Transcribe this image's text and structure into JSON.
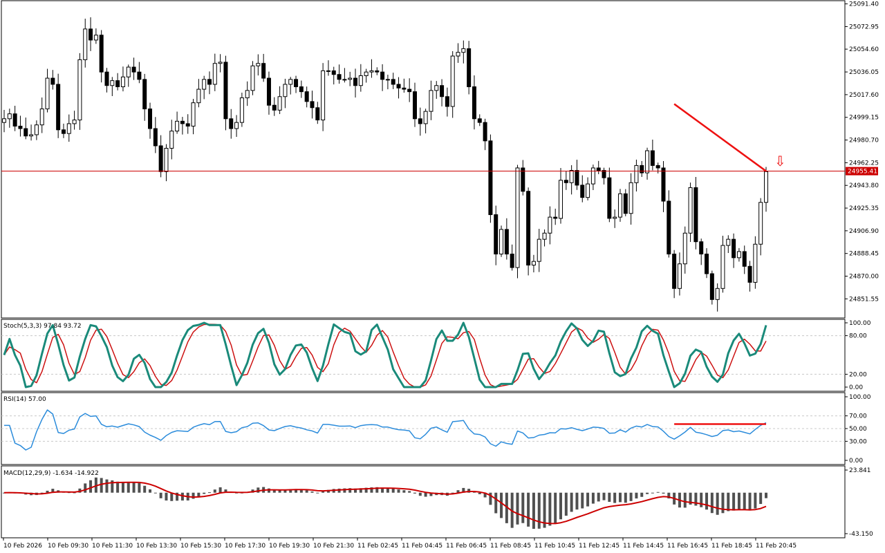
{
  "chart_data": {
    "type": "candlestick",
    "price_ticks": [
      "25091.40",
      "25072.95",
      "25054.60",
      "25036.05",
      "25017.60",
      "24999.15",
      "24980.70",
      "24962.25",
      "24943.80",
      "24925.35",
      "24906.90",
      "24888.45",
      "24870.00",
      "24851.55"
    ],
    "price_range": [
      24836,
      25094
    ],
    "current_price": "24955.41",
    "time_labels": [
      "10 Feb 2026",
      "10 Feb 09:30",
      "10 Feb 11:30",
      "10 Feb 13:30",
      "10 Feb 15:30",
      "10 Feb 17:30",
      "10 Feb 19:30",
      "10 Feb 21:30",
      "11 Feb 02:45",
      "11 Feb 04:45",
      "11 Feb 06:45",
      "11 Feb 08:45",
      "11 Feb 10:45",
      "11 Feb 12:45",
      "11 Feb 14:45",
      "11 Feb 16:45",
      "11 Feb 18:45",
      "11 Feb 20:45"
    ],
    "closes": [
      24998,
      25002,
      24992,
      24990,
      24984,
      24985,
      24993,
      25006,
      25031,
      25026,
      24989,
      24986,
      24994,
      24997,
      25046,
      25071,
      25062,
      25066,
      25036,
      25025,
      25029,
      25024,
      25032,
      25040,
      25036,
      25030,
      25006,
      24990,
      24976,
      24955,
      24974,
      24988,
      24996,
      24994,
      24992,
      25011,
      25022,
      25030,
      25026,
      25043,
      25044,
      24998,
      24990,
      24995,
      25015,
      25021,
      25041,
      25043,
      25031,
      25009,
      25005,
      25016,
      25026,
      25030,
      25024,
      25020,
      25012,
      25007,
      24997,
      25037,
      25037,
      25034,
      25030,
      25030,
      25031,
      25025,
      25033,
      25036,
      25037,
      25036,
      25030,
      25030,
      25026,
      25023,
      25022,
      25020,
      24998,
      24994,
      25004,
      25021,
      25025,
      25016,
      25008,
      25049,
      25052,
      25055,
      25024,
      24998,
      24995,
      24980,
      24920,
      24888,
      24908,
      24888,
      24877,
      24958,
      24939,
      24879,
      24882,
      24900,
      24905,
      24918,
      24917,
      24948,
      24946,
      24956,
      24944,
      24934,
      24945,
      24958,
      24956,
      24950,
      24917,
      24918,
      24937,
      24921,
      24946,
      24960,
      24954,
      24972,
      24960,
      24958,
      24931,
      24888,
      24860,
      24880,
      24905,
      24942,
      24898,
      24888,
      24872,
      24851,
      24860,
      24895,
      24900,
      24885,
      24890,
      24878,
      24865,
      24896,
      24930,
      24955
    ],
    "stochastic": {
      "label": "Stoch(5,3,3) 97.84 93.72",
      "ticks": [
        "100.00",
        "80.00",
        "20.00",
        "0.00"
      ]
    },
    "rsi": {
      "label": "RSI(14) 57.00",
      "ticks": [
        "100.00",
        "70.00",
        "50.00",
        "30.00",
        "0.00"
      ]
    },
    "macd": {
      "label": "MACD(12,29,9) -1.634 -14.922",
      "ticks": [
        "23.841",
        "-43.150"
      ]
    },
    "arrow_glyph": "⇩"
  },
  "colors": {
    "grid": "#c8c8c8",
    "price_line": "#cc0000",
    "stoch_main": "#1a8a7a",
    "stoch_signal": "#cc1111",
    "rsi": "#2a8bdb",
    "macd_bar": "#505050",
    "trendline": "#ee1111"
  }
}
